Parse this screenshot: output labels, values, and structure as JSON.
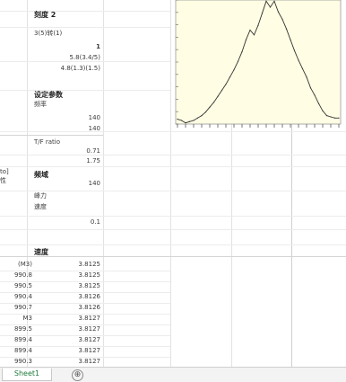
{
  "sheet_tab": "Sheet1",
  "add_sheet_symbol": "⊕",
  "cells": [
    {
      "id": "c_title",
      "text": "刻度 2"
    },
    {
      "id": "c_rpm_label",
      "text": "3(5)转(1)"
    },
    {
      "id": "c_val1",
      "text": "1"
    },
    {
      "id": "c_val2",
      "text": "5.8(3.4/5)"
    },
    {
      "id": "c_val3",
      "text": "4.8(1.3)(1.5)"
    },
    {
      "id": "c_hdr2",
      "text": "设定参数"
    },
    {
      "id": "c_sub2",
      "text": "频率"
    },
    {
      "id": "c_val4",
      "text": "140"
    },
    {
      "id": "c_val5",
      "text": "140"
    },
    {
      "id": "c_ratio",
      "text": "T/F ratio"
    },
    {
      "id": "c_val6",
      "text": "0.71"
    },
    {
      "id": "c_val7",
      "text": "1.75"
    },
    {
      "id": "c_side1",
      "text": "to]"
    },
    {
      "id": "c_side2",
      "text": "性"
    },
    {
      "id": "c_hdr3",
      "text": "频域"
    },
    {
      "id": "c_val8",
      "text": "140"
    },
    {
      "id": "c_lbl4",
      "text": "峰力"
    },
    {
      "id": "c_lbl5",
      "text": "速度"
    },
    {
      "id": "c_val9",
      "text": "0.1"
    },
    {
      "id": "c_tbl_hdr",
      "text": "速度"
    }
  ],
  "table_rows": [
    {
      "a": "(M3)",
      "b": "3.8125"
    },
    {
      "a": "990.8",
      "b": "3.8125"
    },
    {
      "a": "990.5",
      "b": "3.8125"
    },
    {
      "a": "990.4",
      "b": "3.8126"
    },
    {
      "a": "990.7",
      "b": "3.8126"
    },
    {
      "a": "M3",
      "b": "3.8127"
    },
    {
      "a": "899.5",
      "b": "3.8127"
    },
    {
      "a": "899.4",
      "b": "3.8127"
    },
    {
      "a": "899.4",
      "b": "3.8127"
    },
    {
      "a": "990.3",
      "b": "3.8127"
    }
  ],
  "chart_data": {
    "type": "line",
    "title": "",
    "xlabel": "",
    "ylabel": "",
    "x": [
      0,
      1,
      2,
      3,
      4,
      5,
      6,
      7,
      8,
      9,
      10,
      11,
      12,
      13,
      14,
      15,
      16,
      17,
      18,
      19,
      20,
      21,
      22,
      23,
      24,
      25,
      26,
      27,
      28,
      29,
      30,
      31,
      32,
      33,
      34,
      35,
      36,
      37,
      38,
      39,
      40
    ],
    "y": [
      0.04,
      0.03,
      0.01,
      0.02,
      0.03,
      0.05,
      0.07,
      0.1,
      0.14,
      0.18,
      0.23,
      0.28,
      0.33,
      0.39,
      0.45,
      0.52,
      0.6,
      0.7,
      0.78,
      0.74,
      0.82,
      0.92,
      1.02,
      0.97,
      1.02,
      0.93,
      0.87,
      0.79,
      0.7,
      0.61,
      0.53,
      0.46,
      0.39,
      0.3,
      0.24,
      0.17,
      0.11,
      0.07,
      0.06,
      0.05,
      0.05
    ],
    "xlim": [
      0,
      40
    ],
    "ylim": [
      0,
      1
    ],
    "grid": false,
    "line_color": "#333333",
    "plot_background": "#fffde3"
  }
}
